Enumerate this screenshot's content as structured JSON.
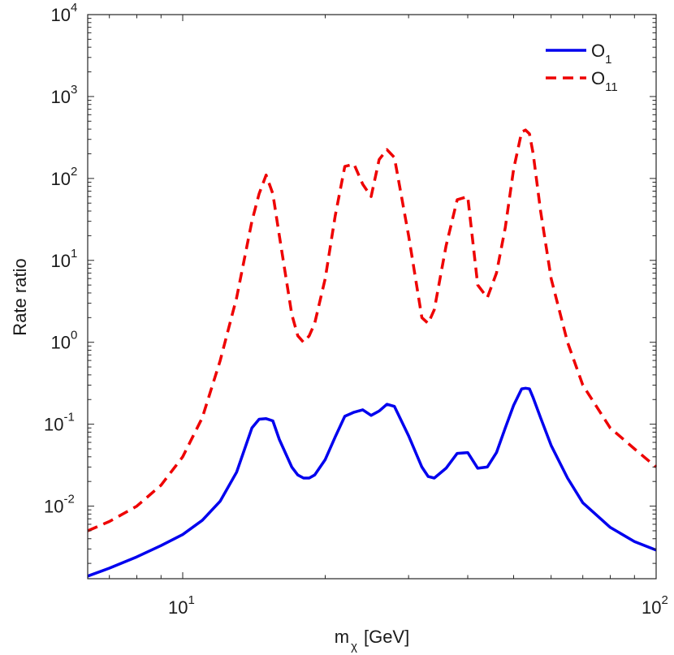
{
  "chart_data": {
    "type": "line",
    "x_scale": "log",
    "y_scale": "log",
    "xlabel": "[GeV]",
    "xlabel_symbol": "m",
    "xlabel_subscript": "χ",
    "ylabel": "Rate ratio",
    "xlim": [
      6.3,
      100
    ],
    "ylim": [
      0.0013,
      10000
    ],
    "x_ticks": [
      {
        "value": 10,
        "base": "10",
        "exp": "1"
      },
      {
        "value": 100,
        "base": "10",
        "exp": "2"
      }
    ],
    "y_ticks": [
      {
        "value": 0.01,
        "base": "10",
        "exp": "-2"
      },
      {
        "value": 0.1,
        "base": "10",
        "exp": "-1"
      },
      {
        "value": 1,
        "base": "10",
        "exp": "0"
      },
      {
        "value": 10,
        "base": "10",
        "exp": "1"
      },
      {
        "value": 100,
        "base": "10",
        "exp": "2"
      },
      {
        "value": 1000,
        "base": "10",
        "exp": "3"
      },
      {
        "value": 10000,
        "base": "10",
        "exp": "4"
      }
    ],
    "legend_position": "top-right",
    "series": [
      {
        "name": "O",
        "subscript": "1",
        "color": "#0000ee",
        "style": "solid",
        "x": [
          6.3,
          7,
          8,
          9,
          10,
          11,
          12,
          13,
          14,
          14.5,
          15,
          15.5,
          16,
          17,
          17.5,
          18,
          18.5,
          19,
          20,
          21,
          22,
          23,
          24,
          25,
          26,
          27,
          28,
          30,
          32,
          33,
          34,
          36,
          38,
          40,
          42,
          44,
          46,
          48,
          50,
          52,
          53,
          54,
          55,
          57,
          60,
          65,
          70,
          80,
          90,
          100
        ],
        "y": [
          0.0014,
          0.00175,
          0.0024,
          0.0033,
          0.0045,
          0.0067,
          0.0115,
          0.026,
          0.09,
          0.115,
          0.117,
          0.11,
          0.065,
          0.03,
          0.024,
          0.022,
          0.022,
          0.024,
          0.037,
          0.07,
          0.125,
          0.14,
          0.15,
          0.128,
          0.145,
          0.175,
          0.165,
          0.072,
          0.03,
          0.023,
          0.022,
          0.029,
          0.044,
          0.045,
          0.029,
          0.03,
          0.045,
          0.09,
          0.17,
          0.27,
          0.275,
          0.27,
          0.21,
          0.12,
          0.055,
          0.022,
          0.011,
          0.0055,
          0.0037,
          0.0029
        ]
      },
      {
        "name": "O",
        "subscript": "11",
        "color": "#ee0000",
        "style": "dashed",
        "x": [
          6.3,
          7,
          8,
          9,
          10,
          11,
          12,
          13,
          14,
          14.5,
          15,
          15.5,
          16,
          17,
          17.5,
          18,
          18.5,
          19,
          20,
          21,
          22,
          23,
          24,
          25,
          26,
          27,
          28,
          30,
          32,
          33,
          34,
          36,
          38,
          40,
          42,
          44,
          46,
          48,
          50,
          52,
          53,
          54,
          55,
          57,
          60,
          65,
          70,
          80,
          90,
          100
        ],
        "y": [
          0.005,
          0.0065,
          0.01,
          0.018,
          0.04,
          0.12,
          0.6,
          3.5,
          30,
          65,
          110,
          65,
          20,
          2.2,
          1.2,
          1.0,
          1.2,
          1.7,
          6,
          35,
          140,
          150,
          85,
          60,
          170,
          225,
          180,
          20,
          2.0,
          1.7,
          2.5,
          15,
          55,
          60,
          5,
          3.5,
          7,
          25,
          130,
          370,
          390,
          350,
          200,
          40,
          6,
          1.0,
          0.3,
          0.09,
          0.05,
          0.03
        ]
      }
    ]
  }
}
